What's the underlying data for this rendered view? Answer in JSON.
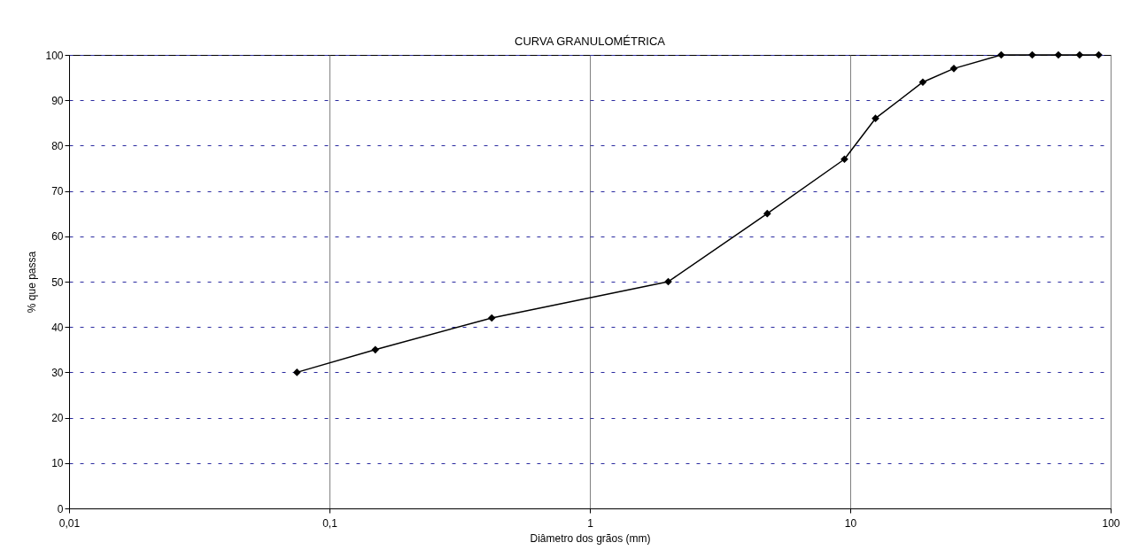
{
  "chart_data": {
    "type": "line",
    "title": "CURVA GRANULOMÉTRICA",
    "xlabel": "Diâmetro dos grãos (mm)",
    "ylabel": "% que passa",
    "x": [
      0.075,
      0.15,
      0.42,
      2.0,
      4.8,
      9.5,
      12.5,
      19,
      25,
      38,
      50,
      63,
      76,
      90
    ],
    "values": [
      30,
      35,
      42,
      50,
      65,
      77,
      86,
      94,
      97,
      100,
      100,
      100,
      100,
      100
    ],
    "color": "#000000",
    "marker": "diamond",
    "line_style": "solid",
    "log": "x",
    "grid": true,
    "xlim": [
      0.01,
      100
    ],
    "ylim": [
      0,
      100
    ],
    "xticks": [
      {
        "value": 0.01,
        "label": "0,01"
      },
      {
        "value": 0.1,
        "label": "0,1"
      },
      1,
      10,
      100
    ],
    "yticks": [
      0,
      10,
      20,
      30,
      40,
      50,
      60,
      70,
      80,
      90,
      100
    ]
  }
}
